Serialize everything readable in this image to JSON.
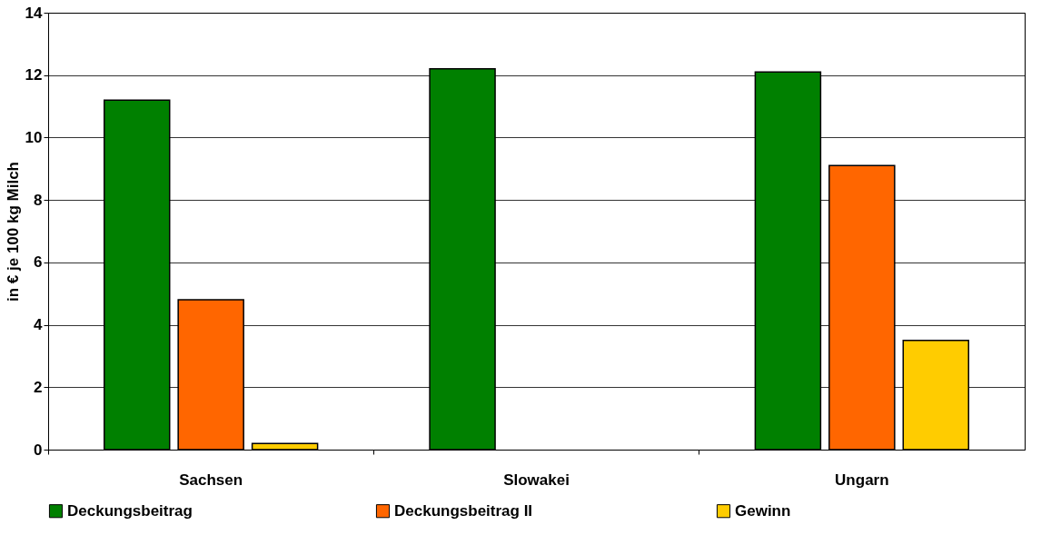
{
  "chart_data": {
    "type": "bar",
    "ylabel": "in € je 100 kg Milch",
    "categories": [
      "Sachsen",
      "Slowakei",
      "Ungarn"
    ],
    "series": [
      {
        "name": "Deckungsbeitrag",
        "color": "#008000",
        "values": [
          11.2,
          12.2,
          12.1
        ]
      },
      {
        "name": "Deckungsbeitrag II",
        "color": "#ff6600",
        "values": [
          4.8,
          null,
          9.1
        ]
      },
      {
        "name": "Gewinn",
        "color": "#ffcc00",
        "values": [
          0.2,
          null,
          3.5
        ]
      }
    ],
    "ylim": [
      0,
      14
    ],
    "yticks": [
      0,
      2,
      4,
      6,
      8,
      10,
      12,
      14
    ],
    "grid": "y",
    "legend": "bottom"
  }
}
